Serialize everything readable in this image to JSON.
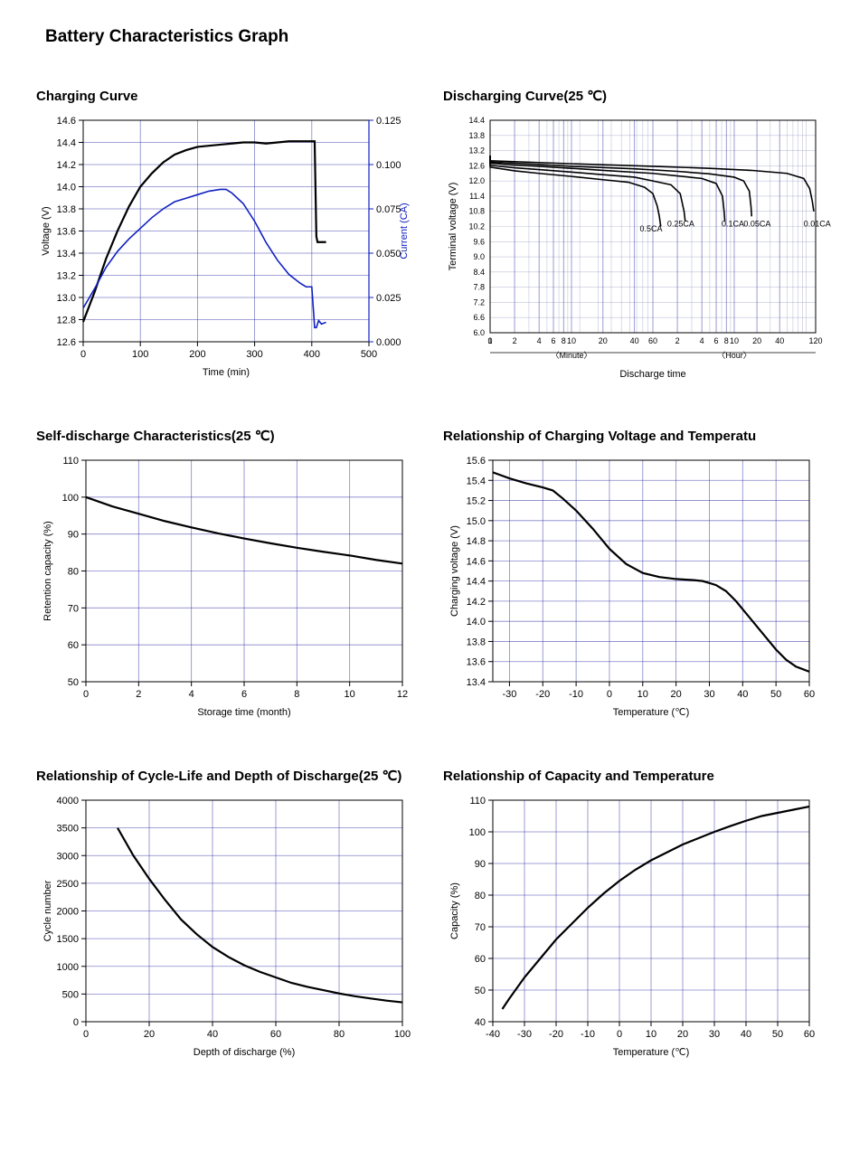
{
  "page_title": "Battery Characteristics Graph",
  "colors": {
    "black": "#000000",
    "blue_series": "#1020c0",
    "grid_blue": "#2020a0",
    "right_axis_blue": "#1020c0"
  },
  "charging": {
    "title": "Charging Curve",
    "type": "line-dual-axis",
    "xlabel": "Time (min)",
    "ylabel_left": "Voltage (V)",
    "ylabel_right": "Current (CA)",
    "xlim": [
      0,
      500
    ],
    "xtick_step": 100,
    "ylim_left": [
      12.6,
      14.6
    ],
    "ytick_left_step": 0.2,
    "ylim_right": [
      0.0,
      0.125
    ],
    "ytick_right_step": 0.025,
    "right_tick_decimals": 3,
    "left_color": "#000000",
    "right_color": "#1020c0",
    "voltage_series": {
      "color": "#000000",
      "points": [
        [
          0,
          12.78
        ],
        [
          20,
          13.05
        ],
        [
          40,
          13.35
        ],
        [
          60,
          13.6
        ],
        [
          80,
          13.82
        ],
        [
          100,
          14.0
        ],
        [
          120,
          14.12
        ],
        [
          140,
          14.22
        ],
        [
          160,
          14.29
        ],
        [
          180,
          14.33
        ],
        [
          200,
          14.36
        ],
        [
          220,
          14.37
        ],
        [
          240,
          14.38
        ],
        [
          260,
          14.39
        ],
        [
          280,
          14.4
        ],
        [
          300,
          14.4
        ],
        [
          320,
          14.39
        ],
        [
          340,
          14.4
        ],
        [
          360,
          14.41
        ],
        [
          380,
          14.41
        ],
        [
          400,
          14.41
        ],
        [
          405,
          14.41
        ],
        [
          408,
          13.55
        ],
        [
          410,
          13.5
        ],
        [
          425,
          13.5
        ]
      ]
    },
    "current_series": {
      "color": "#1020c0",
      "points": [
        [
          0,
          0.019
        ],
        [
          20,
          0.03
        ],
        [
          40,
          0.042
        ],
        [
          60,
          0.051
        ],
        [
          80,
          0.058
        ],
        [
          100,
          0.064
        ],
        [
          120,
          0.07
        ],
        [
          140,
          0.075
        ],
        [
          160,
          0.079
        ],
        [
          180,
          0.081
        ],
        [
          200,
          0.083
        ],
        [
          220,
          0.085
        ],
        [
          240,
          0.086
        ],
        [
          250,
          0.086
        ],
        [
          260,
          0.084
        ],
        [
          280,
          0.078
        ],
        [
          300,
          0.068
        ],
        [
          320,
          0.056
        ],
        [
          340,
          0.046
        ],
        [
          360,
          0.038
        ],
        [
          380,
          0.033
        ],
        [
          390,
          0.031
        ],
        [
          397,
          0.031
        ],
        [
          400,
          0.031
        ],
        [
          405,
          0.008
        ],
        [
          408,
          0.008
        ],
        [
          412,
          0.012
        ],
        [
          417,
          0.01
        ],
        [
          425,
          0.011
        ]
      ]
    }
  },
  "discharging": {
    "title": "Discharging Curve(25 ℃)",
    "type": "line-log-x",
    "xlabel": "Discharge time",
    "sublabel_minute": "〈Minute〉",
    "sublabel_hour": "〈Hour〉",
    "ylabel": "Terminal voltage (V)",
    "ylim": [
      6.0,
      14.4
    ],
    "ytick_step": 0.6,
    "x_decades": [
      {
        "min": 1,
        "max": 10,
        "ticks": [
          1,
          2,
          4,
          6,
          8,
          10
        ]
      },
      {
        "min": 10,
        "max": 60,
        "ticks": [
          20,
          40,
          60
        ]
      },
      {
        "min": 60,
        "max": 600,
        "ticks": [
          120,
          240,
          360,
          480,
          600
        ]
      },
      {
        "min": 600,
        "max": 7200,
        "ticks": [
          1200,
          2400,
          7200
        ]
      }
    ],
    "x_tick_labels": [
      {
        "t": 0,
        "label": "0"
      },
      {
        "t": 1,
        "label": "1"
      },
      {
        "t": 2,
        "label": "2"
      },
      {
        "t": 4,
        "label": "4"
      },
      {
        "t": 6,
        "label": "6"
      },
      {
        "t": 8,
        "label": "8"
      },
      {
        "t": 10,
        "label": "10"
      },
      {
        "t": 20,
        "label": "20"
      },
      {
        "t": 40,
        "label": "40"
      },
      {
        "t": 60,
        "label": "60"
      },
      {
        "t": 120,
        "label": "2"
      },
      {
        "t": 240,
        "label": "4"
      },
      {
        "t": 360,
        "label": "6"
      },
      {
        "t": 480,
        "label": "8"
      },
      {
        "t": 600,
        "label": "10"
      },
      {
        "t": 1200,
        "label": "20"
      },
      {
        "t": 2400,
        "label": "40"
      },
      {
        "t": 7200,
        "label": "120"
      }
    ],
    "curves": [
      {
        "label": "0.5CA",
        "label_t": 45,
        "label_v": 10.0,
        "color": "#000000",
        "points": [
          [
            0,
            13.0
          ],
          [
            1,
            12.55
          ],
          [
            2,
            12.4
          ],
          [
            4,
            12.3
          ],
          [
            10,
            12.18
          ],
          [
            20,
            12.05
          ],
          [
            35,
            11.95
          ],
          [
            50,
            11.75
          ],
          [
            60,
            11.5
          ],
          [
            68,
            11.0
          ],
          [
            72,
            10.6
          ],
          [
            75,
            10.2
          ]
        ]
      },
      {
        "label": "0.25CA",
        "label_t": 90,
        "label_v": 10.2,
        "color": "#000000",
        "points": [
          [
            0,
            13.0
          ],
          [
            1,
            12.62
          ],
          [
            2,
            12.52
          ],
          [
            4,
            12.45
          ],
          [
            10,
            12.35
          ],
          [
            20,
            12.25
          ],
          [
            40,
            12.15
          ],
          [
            60,
            12.0
          ],
          [
            100,
            11.85
          ],
          [
            130,
            11.5
          ],
          [
            145,
            10.8
          ],
          [
            150,
            10.4
          ]
        ]
      },
      {
        "label": "0.1CA",
        "label_t": 420,
        "label_v": 10.2,
        "color": "#000000",
        "points": [
          [
            0,
            13.0
          ],
          [
            1,
            12.7
          ],
          [
            2,
            12.63
          ],
          [
            4,
            12.58
          ],
          [
            10,
            12.5
          ],
          [
            20,
            12.42
          ],
          [
            60,
            12.3
          ],
          [
            120,
            12.2
          ],
          [
            240,
            12.1
          ],
          [
            360,
            11.9
          ],
          [
            430,
            11.4
          ],
          [
            450,
            10.8
          ],
          [
            460,
            10.4
          ]
        ]
      },
      {
        "label": "0.05CA",
        "label_t": 800,
        "label_v": 10.2,
        "color": "#000000",
        "points": [
          [
            0,
            13.0
          ],
          [
            1,
            12.75
          ],
          [
            4,
            12.65
          ],
          [
            10,
            12.58
          ],
          [
            40,
            12.48
          ],
          [
            120,
            12.38
          ],
          [
            300,
            12.28
          ],
          [
            600,
            12.15
          ],
          [
            800,
            12.0
          ],
          [
            950,
            11.6
          ],
          [
            1000,
            11.0
          ],
          [
            1020,
            10.6
          ]
        ]
      },
      {
        "label": "0.01CA",
        "label_t": 5000,
        "label_v": 10.2,
        "color": "#000000",
        "points": [
          [
            0,
            13.0
          ],
          [
            1,
            12.8
          ],
          [
            10,
            12.68
          ],
          [
            60,
            12.58
          ],
          [
            300,
            12.5
          ],
          [
            1000,
            12.42
          ],
          [
            3000,
            12.3
          ],
          [
            5000,
            12.1
          ],
          [
            6000,
            11.7
          ],
          [
            6500,
            11.2
          ],
          [
            6800,
            10.8
          ]
        ]
      }
    ]
  },
  "self_discharge": {
    "title": "Self-discharge Characteristics(25 ℃)",
    "type": "line",
    "xlabel": "Storage time (month)",
    "ylabel": "Retention capacity (%)",
    "xlim": [
      0,
      12
    ],
    "xtick_step": 2,
    "ylim": [
      50,
      110
    ],
    "ytick_step": 10,
    "series": {
      "color": "#000000",
      "points": [
        [
          0,
          100
        ],
        [
          1,
          97.5
        ],
        [
          2,
          95.5
        ],
        [
          3,
          93.5
        ],
        [
          4,
          91.8
        ],
        [
          5,
          90.2
        ],
        [
          6,
          88.8
        ],
        [
          7,
          87.5
        ],
        [
          8,
          86.3
        ],
        [
          9,
          85.2
        ],
        [
          10,
          84.2
        ],
        [
          11,
          83.0
        ],
        [
          12,
          82.0
        ]
      ]
    }
  },
  "charge_voltage_temp": {
    "title": "Relationship of Charging Voltage and Temperatu",
    "type": "line",
    "xlabel": "Temperature (℃)",
    "ylabel": "Charging voltage (V)",
    "xlim": [
      -35,
      60
    ],
    "xtick_start": -30,
    "xtick_step": 10,
    "ylim": [
      13.4,
      15.6
    ],
    "ytick_step": 0.2,
    "series": {
      "color": "#000000",
      "points": [
        [
          -35,
          15.48
        ],
        [
          -30,
          15.42
        ],
        [
          -25,
          15.37
        ],
        [
          -20,
          15.33
        ],
        [
          -17,
          15.3
        ],
        [
          -14,
          15.22
        ],
        [
          -10,
          15.1
        ],
        [
          -5,
          14.92
        ],
        [
          0,
          14.72
        ],
        [
          5,
          14.57
        ],
        [
          10,
          14.48
        ],
        [
          15,
          14.44
        ],
        [
          20,
          14.42
        ],
        [
          25,
          14.41
        ],
        [
          28,
          14.4
        ],
        [
          30,
          14.38
        ],
        [
          32,
          14.36
        ],
        [
          35,
          14.3
        ],
        [
          38,
          14.2
        ],
        [
          40,
          14.12
        ],
        [
          43,
          14.0
        ],
        [
          46,
          13.88
        ],
        [
          50,
          13.72
        ],
        [
          53,
          13.62
        ],
        [
          56,
          13.55
        ],
        [
          60,
          13.5
        ]
      ]
    }
  },
  "cycle_life": {
    "title": "Relationship of Cycle-Life and Depth of Discharge(25 ℃)",
    "type": "line",
    "xlabel": "Depth of discharge (%)",
    "ylabel": "Cycle number",
    "xlim": [
      0,
      100
    ],
    "xtick_step": 20,
    "ylim": [
      0,
      4000
    ],
    "ytick_step": 500,
    "series": {
      "color": "#000000",
      "points": [
        [
          10,
          3500
        ],
        [
          15,
          3000
        ],
        [
          20,
          2580
        ],
        [
          25,
          2200
        ],
        [
          30,
          1850
        ],
        [
          35,
          1580
        ],
        [
          40,
          1350
        ],
        [
          45,
          1170
        ],
        [
          50,
          1020
        ],
        [
          55,
          900
        ],
        [
          60,
          800
        ],
        [
          65,
          700
        ],
        [
          70,
          630
        ],
        [
          75,
          570
        ],
        [
          80,
          510
        ],
        [
          85,
          460
        ],
        [
          90,
          420
        ],
        [
          95,
          380
        ],
        [
          100,
          350
        ]
      ]
    }
  },
  "capacity_temp": {
    "title": "Relationship of Capacity and Temperature",
    "type": "line",
    "xlabel": "Temperature (℃)",
    "ylabel": "Capacity (%)",
    "xlim": [
      -40,
      60
    ],
    "xtick_start": -40,
    "xtick_step": 10,
    "ylim": [
      40,
      110
    ],
    "ytick_step": 10,
    "series": {
      "color": "#000000",
      "points": [
        [
          -37,
          44
        ],
        [
          -35,
          47
        ],
        [
          -30,
          54
        ],
        [
          -25,
          60
        ],
        [
          -20,
          66
        ],
        [
          -15,
          71
        ],
        [
          -10,
          76
        ],
        [
          -5,
          80.5
        ],
        [
          0,
          84.5
        ],
        [
          5,
          88
        ],
        [
          10,
          91
        ],
        [
          15,
          93.5
        ],
        [
          20,
          96
        ],
        [
          25,
          98
        ],
        [
          30,
          100
        ],
        [
          35,
          101.8
        ],
        [
          40,
          103.5
        ],
        [
          45,
          105
        ],
        [
          50,
          106
        ],
        [
          55,
          107
        ],
        [
          60,
          108
        ]
      ]
    }
  }
}
